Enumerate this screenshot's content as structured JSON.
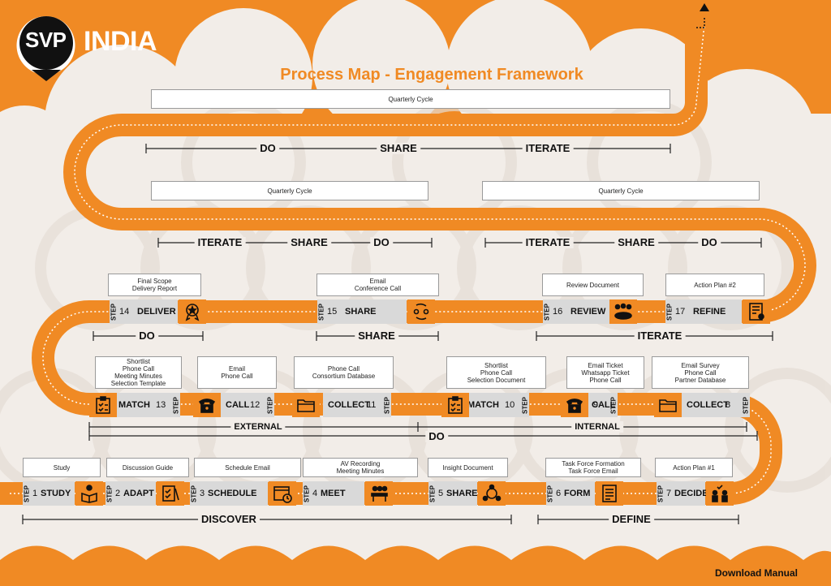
{
  "brand": {
    "logo_badge": "SVP",
    "logo_name": "INDIA"
  },
  "title": "Process Map - Engagement Framework",
  "footer": {
    "download": "Download Manual"
  },
  "step_word": "STEP",
  "top_boxes": [
    "Quarterly Cycle",
    "Quarterly Cycle",
    "Quarterly Cycle"
  ],
  "brackets": [
    {
      "words": [
        "DO",
        "SHARE",
        "ITERATE"
      ]
    },
    {
      "words": [
        "ITERATE",
        "SHARE",
        "DO"
      ]
    },
    {
      "words": [
        "ITERATE",
        "SHARE",
        "DO"
      ]
    },
    {
      "words": [
        "DO"
      ]
    },
    {
      "words": [
        "SHARE"
      ]
    },
    {
      "words": [
        "ITERATE"
      ]
    },
    {
      "words": [
        "EXTERNAL"
      ]
    },
    {
      "words": [
        "INTERNAL"
      ]
    },
    {
      "words": [
        "DO"
      ]
    },
    {
      "words": [
        "DISCOVER"
      ]
    },
    {
      "words": [
        "DEFINE"
      ]
    }
  ],
  "steps": [
    {
      "num": "1",
      "name": "STUDY",
      "note": [
        "Study"
      ],
      "icon": "reading-person-icon"
    },
    {
      "num": "2",
      "name": "ADAPT",
      "note": [
        "Discussion Guide"
      ],
      "icon": "checklist-pen-icon"
    },
    {
      "num": "3",
      "name": "SCHEDULE",
      "note": [
        "Schedule Email"
      ],
      "icon": "calendar-clock-icon"
    },
    {
      "num": "4",
      "name": "MEET",
      "note": [
        "AV Recording",
        "Meeting Minutes"
      ],
      "icon": "meeting-table-icon"
    },
    {
      "num": "5",
      "name": "SHARE",
      "note": [
        "Insight Document"
      ],
      "icon": "network-people-icon"
    },
    {
      "num": "6",
      "name": "FORM",
      "note": [
        "Task Force Formation",
        "Task Force Email"
      ],
      "icon": "form-document-icon"
    },
    {
      "num": "7",
      "name": "DECIDE",
      "note": [
        "Action Plan #1"
      ],
      "icon": "decision-people-icon"
    },
    {
      "num": "8",
      "name": "COLLECT",
      "note": [
        "Email Survey",
        "Phone Call",
        "Partner Database"
      ],
      "icon": "folder-icon"
    },
    {
      "num": "9",
      "name": "CALL",
      "note": [
        "Email Ticket",
        "Whatsapp Ticket",
        "Phone Call"
      ],
      "icon": "telephone-icon"
    },
    {
      "num": "10",
      "name": "MATCH",
      "note": [
        "Shortlist",
        "Phone Call",
        "Selection Document"
      ],
      "icon": "clipboard-check-icon"
    },
    {
      "num": "11",
      "name": "COLLECT",
      "note": [
        "Phone Call",
        "Consortium Database"
      ],
      "icon": "folder-icon"
    },
    {
      "num": "12",
      "name": "CALL",
      "note": [
        "Email",
        "Phone Call"
      ],
      "icon": "telephone-icon"
    },
    {
      "num": "13",
      "name": "MATCH",
      "note": [
        "Shortlist",
        "Phone Call",
        "Meeting Minutes",
        "Selection Template"
      ],
      "icon": "clipboard-check-icon"
    },
    {
      "num": "14",
      "name": "DELIVER",
      "note": [
        "Final Scope",
        "Delivery Report"
      ],
      "icon": "award-badge-icon"
    },
    {
      "num": "15",
      "name": "SHARE",
      "note": [
        "Email",
        "Conference Call"
      ],
      "icon": "exchange-people-icon"
    },
    {
      "num": "16",
      "name": "REVIEW",
      "note": [
        "Review Document"
      ],
      "icon": "group-review-icon"
    },
    {
      "num": "17",
      "name": "REFINE",
      "note": [
        "Action Plan #2"
      ],
      "icon": "certificate-icon"
    }
  ],
  "colors": {
    "orange": "#f08a24",
    "cloud": "#f2ede8",
    "cell": "#d9d9d9",
    "ink": "#111111"
  }
}
